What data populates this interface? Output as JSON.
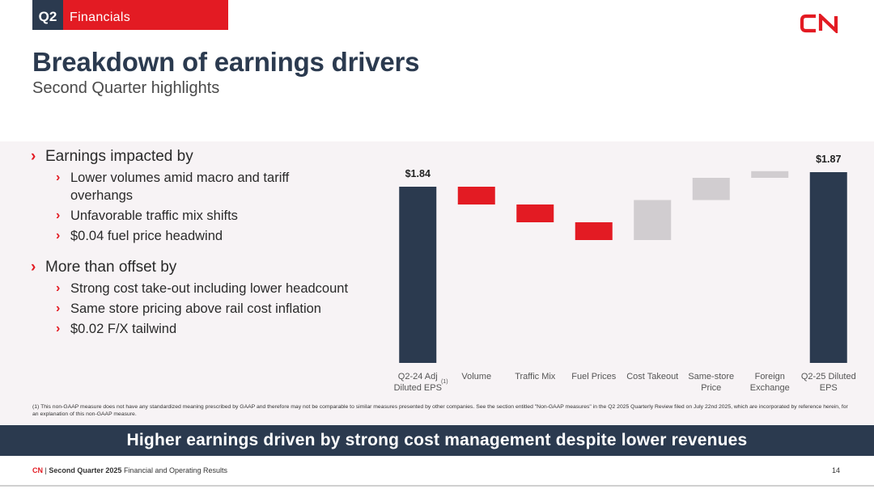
{
  "header": {
    "quarter": "Q2",
    "section": "Financials",
    "logo_text": "CN",
    "title": "Breakdown of earnings drivers",
    "subtitle": "Second Quarter highlights"
  },
  "bullets": {
    "group1": {
      "heading": "Earnings impacted by",
      "items": [
        "Lower volumes amid macro and tariff overhangs",
        "Unfavorable traffic mix shifts",
        "$0.04 fuel price headwind"
      ]
    },
    "group2": {
      "heading": "More than offset by",
      "items": [
        "Strong cost take-out including lower headcount",
        "Same store pricing above rail cost inflation",
        "$0.02 F/X tailwind"
      ]
    }
  },
  "chart_data": {
    "type": "bar",
    "subtype": "waterfall",
    "categories": [
      [
        "Q2-24 Adj",
        "Diluted EPS"
      ],
      [
        "Volume"
      ],
      [
        "Traffic Mix"
      ],
      [
        "Fuel Prices"
      ],
      [
        "Cost Takeout"
      ],
      [
        "Same-store",
        "Price"
      ],
      [
        "Foreign",
        "Exchange"
      ],
      [
        "Q2-25 Diluted",
        "EPS"
      ]
    ],
    "footnote_marker": "(1)",
    "bars": [
      {
        "kind": "total",
        "start": 0,
        "end": 1.84
      },
      {
        "kind": "decrease",
        "start": 1.84,
        "end": 1.8
      },
      {
        "kind": "decrease",
        "start": 1.8,
        "end": 1.76
      },
      {
        "kind": "decrease",
        "start": 1.76,
        "end": 1.72
      },
      {
        "kind": "increase",
        "start": 1.72,
        "end": 1.81
      },
      {
        "kind": "increase",
        "start": 1.81,
        "end": 1.86
      },
      {
        "kind": "increase",
        "start": 1.86,
        "end": 1.875
      },
      {
        "kind": "total",
        "start": 0,
        "end": 1.87
      }
    ],
    "data_labels": [
      "$1.84",
      "",
      "",
      "",
      "",
      "",
      "",
      "$1.87"
    ],
    "colors": {
      "total": "#2b3a4f",
      "decrease": "#e31b23",
      "increase": "#d1cdd0"
    },
    "axis_visible": false,
    "ylim": [
      0,
      1.9
    ]
  },
  "footnote": "(1)  This non-GAAP measure does not have any standardized meaning prescribed by GAAP and therefore may not be comparable to similar measures presented by other companies. See the section entitled \"Non-GAAP measures\" in the Q2 2025 Quarterly Review filed on July 22nd 2025, which are incorporated by reference herein, for an explanation of this non-GAAP measure.",
  "banner": "Higher earnings driven by strong cost management despite lower revenues",
  "footer": {
    "brand": "CN",
    "separator": "|",
    "report_bold": "Second Quarter 2025",
    "report_rest": "Financial and Operating Results",
    "page": "14"
  },
  "colors": {
    "navy": "#2b3a4f",
    "red": "#e31b23",
    "grey": "#d1cdd0",
    "panel": "#f7f3f5"
  }
}
